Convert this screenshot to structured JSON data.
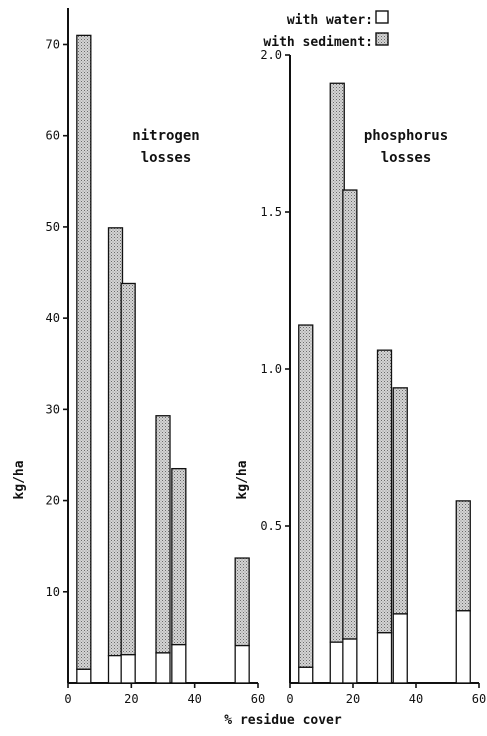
{
  "chart_data": [
    {
      "type": "bar",
      "stacked": true,
      "title_lines": [
        "nitrogen",
        "losses"
      ],
      "xlabel": "% residue cover",
      "ylabel": "kg/ha",
      "xlim": [
        0,
        60
      ],
      "ylim": [
        0,
        74
      ],
      "x_ticks": [
        0,
        20,
        40,
        60
      ],
      "y_ticks": [
        10,
        20,
        30,
        40,
        50,
        60,
        70
      ],
      "x": [
        5,
        15,
        19,
        30,
        35,
        55
      ],
      "series": [
        {
          "name": "with water",
          "values": [
            1.5,
            3.0,
            3.1,
            3.3,
            4.2,
            4.1
          ]
        },
        {
          "name": "with sediment",
          "values": [
            69.5,
            46.9,
            40.7,
            26.0,
            19.3,
            9.6
          ]
        }
      ],
      "totals": [
        71.0,
        49.9,
        43.8,
        29.3,
        23.5,
        13.7
      ]
    },
    {
      "type": "bar",
      "stacked": true,
      "title_lines": [
        "phosphorus",
        "losses"
      ],
      "xlabel": "% residue cover",
      "ylabel": "kg/ha",
      "xlim": [
        0,
        60
      ],
      "ylim": [
        0,
        2.0
      ],
      "x_ticks": [
        0,
        20,
        40,
        60
      ],
      "y_ticks": [
        0.5,
        1.0,
        1.5,
        2.0
      ],
      "x": [
        5,
        15,
        19,
        30,
        35,
        55
      ],
      "series": [
        {
          "name": "with water",
          "values": [
            0.05,
            0.13,
            0.14,
            0.16,
            0.22,
            0.23
          ]
        },
        {
          "name": "with sediment",
          "values": [
            1.09,
            1.78,
            1.43,
            0.9,
            0.72,
            0.35
          ]
        }
      ],
      "totals": [
        1.14,
        1.91,
        1.57,
        1.06,
        0.94,
        0.58
      ]
    }
  ],
  "legend": [
    {
      "label": "with  water:",
      "style": "open"
    },
    {
      "label": "with  sediment:",
      "style": "stippled"
    }
  ],
  "x_axis_caption": "% residue  cover",
  "colors": {
    "sediment_fill": "#c9c9c9",
    "water_fill": "#ffffff",
    "ink": "#111111"
  }
}
